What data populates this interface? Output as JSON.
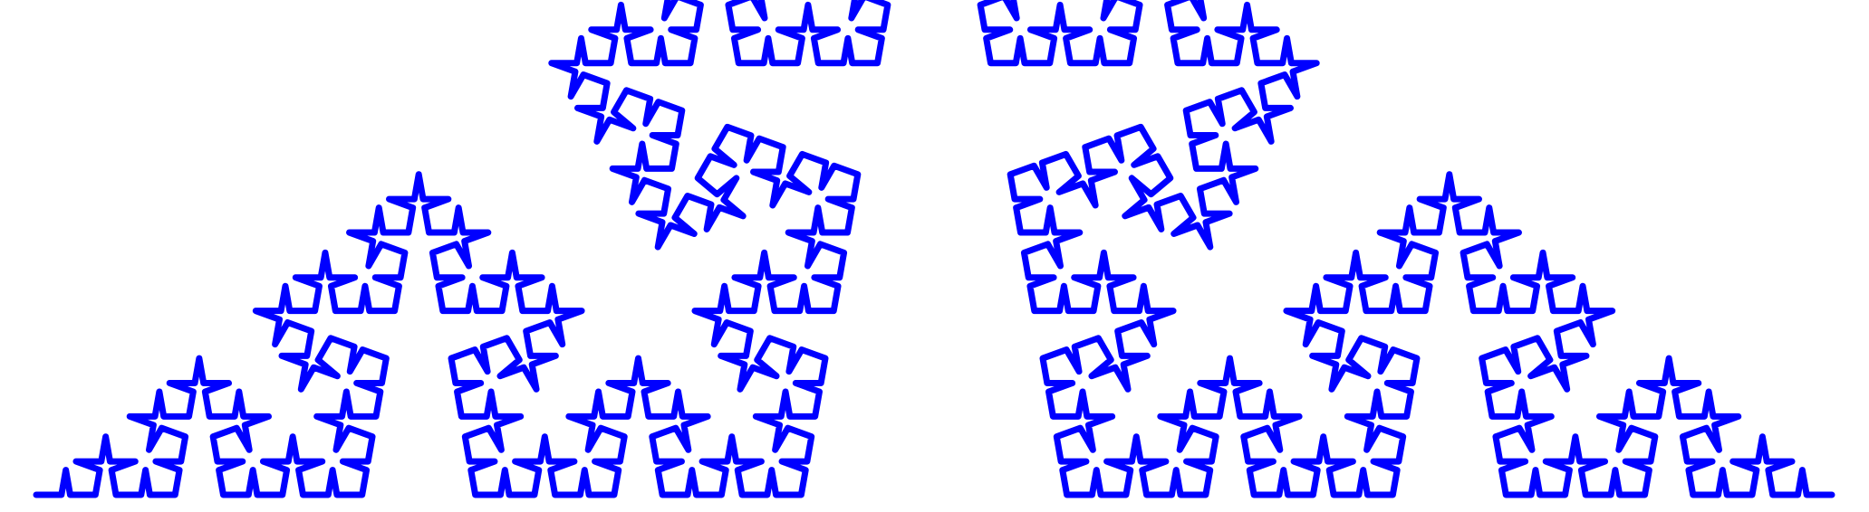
{
  "diagram": {
    "type": "koch-curve",
    "curve_color": "#0000ff",
    "background_color": "#ffffff",
    "iterations": 5,
    "turn_angle_degrees": 80
  }
}
